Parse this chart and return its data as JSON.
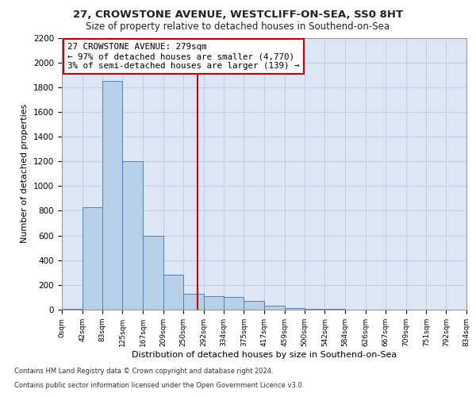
{
  "title1": "27, CROWSTONE AVENUE, WESTCLIFF-ON-SEA, SS0 8HT",
  "title2": "Size of property relative to detached houses in Southend-on-Sea",
  "xlabel": "Distribution of detached houses by size in Southend-on-Sea",
  "ylabel": "Number of detached properties",
  "footnote1": "Contains HM Land Registry data © Crown copyright and database right 2024.",
  "footnote2": "Contains public sector information licensed under the Open Government Licence v3.0.",
  "annotation_title": "27 CROWSTONE AVENUE: 279sqm",
  "annotation_line1": "← 97% of detached houses are smaller (4,770)",
  "annotation_line2": "3% of semi-detached houses are larger (139) →",
  "property_size": 279,
  "bar_edges": [
    0,
    42,
    83,
    125,
    167,
    209,
    250,
    292,
    334,
    375,
    417,
    459,
    500,
    542,
    584,
    626,
    667,
    709,
    751,
    792,
    834
  ],
  "bar_heights": [
    5,
    830,
    1850,
    1200,
    600,
    280,
    130,
    110,
    100,
    70,
    30,
    10,
    5,
    4,
    3,
    2,
    1,
    1,
    0,
    0
  ],
  "bar_color": "#b8cfe8",
  "bar_edge_color": "#5580b0",
  "vline_color": "#cc0000",
  "annotation_box_color": "#cc0000",
  "grid_color": "#c0cedf",
  "background_color": "#dce6f5",
  "ylim": [
    0,
    2200
  ],
  "yticks": [
    0,
    200,
    400,
    600,
    800,
    1000,
    1200,
    1400,
    1600,
    1800,
    2000,
    2200
  ]
}
